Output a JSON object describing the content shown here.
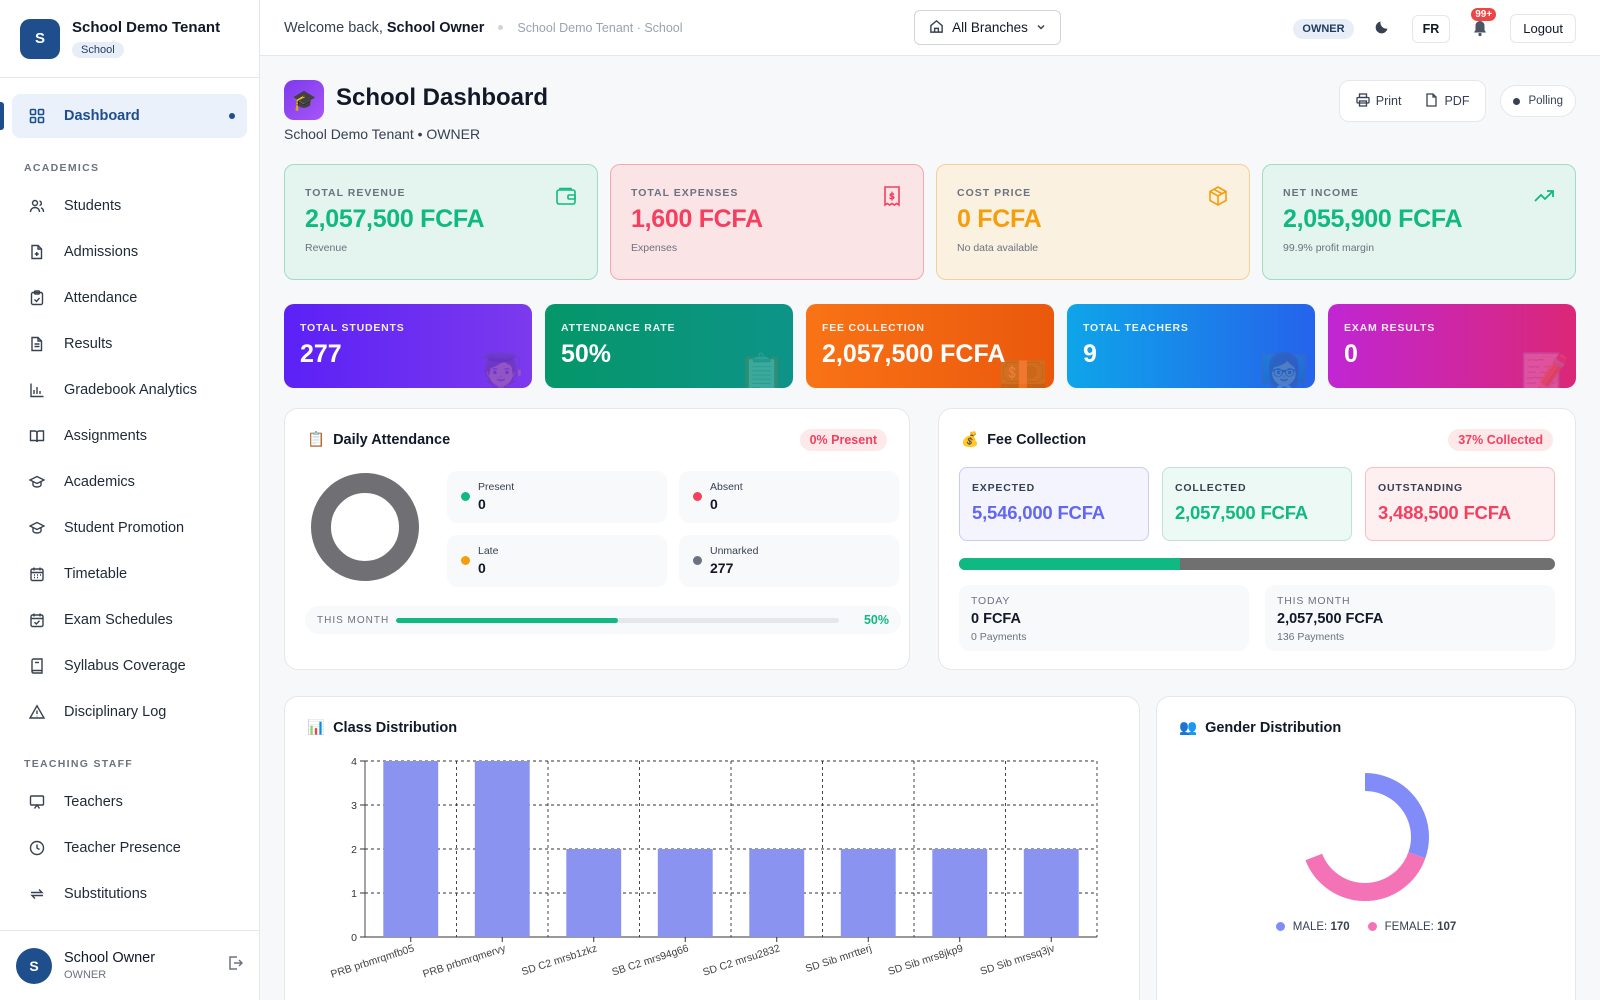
{
  "brand": {
    "logo_letter": "S",
    "name": "School Demo Tenant",
    "badge": "School"
  },
  "nav": {
    "items": [
      {
        "label": "Dashboard",
        "icon": "grid-icon",
        "active": true
      }
    ],
    "sections": [
      {
        "title": "ACADEMICS",
        "items": [
          {
            "label": "Students",
            "icon": "users-icon"
          },
          {
            "label": "Admissions",
            "icon": "file-plus-icon"
          },
          {
            "label": "Attendance",
            "icon": "clipboard-check-icon"
          },
          {
            "label": "Results",
            "icon": "file-text-icon"
          },
          {
            "label": "Gradebook Analytics",
            "icon": "bar-chart-icon"
          },
          {
            "label": "Assignments",
            "icon": "book-open-icon"
          },
          {
            "label": "Academics",
            "icon": "graduation-cap-icon"
          },
          {
            "label": "Student Promotion",
            "icon": "graduation-cap-icon"
          },
          {
            "label": "Timetable",
            "icon": "calendar-icon"
          },
          {
            "label": "Exam Schedules",
            "icon": "calendar-check-icon"
          },
          {
            "label": "Syllabus Coverage",
            "icon": "book-icon"
          },
          {
            "label": "Disciplinary Log",
            "icon": "alert-triangle-icon"
          }
        ]
      },
      {
        "title": "TEACHING STAFF",
        "items": [
          {
            "label": "Teachers",
            "icon": "presentation-icon"
          },
          {
            "label": "Teacher Presence",
            "icon": "clock-icon"
          },
          {
            "label": "Substitutions",
            "icon": "repeat-icon"
          }
        ]
      }
    ]
  },
  "user": {
    "avatar_letter": "S",
    "name": "School Owner",
    "role": "OWNER"
  },
  "topbar": {
    "welcome_prefix": "Welcome back,",
    "welcome_name": "School Owner",
    "breadcrumb": "School Demo Tenant · School",
    "branch_select": "All Branches",
    "role_pill": "OWNER",
    "lang": "FR",
    "notif_count": "99+",
    "logout": "Logout"
  },
  "page": {
    "title": "School Dashboard",
    "subtitle": "School Demo Tenant • OWNER",
    "print_label": "Print",
    "pdf_label": "PDF",
    "polling_label": "Polling"
  },
  "finance": [
    {
      "label": "TOTAL REVENUE",
      "value": "2,057,500 FCFA",
      "sub": "Revenue",
      "bg": "#e3f5ee",
      "border": "#9fdcc3",
      "color": "#10b981",
      "icon": "wallet-icon"
    },
    {
      "label": "TOTAL EXPENSES",
      "value": "1,600 FCFA",
      "sub": "Expenses",
      "bg": "#fbe4e6",
      "border": "#f2a9b2",
      "color": "#f43f5e",
      "icon": "receipt-icon"
    },
    {
      "label": "COST PRICE",
      "value": "0 FCFA",
      "sub": "No data available",
      "bg": "#fbf1e1",
      "border": "#f3d09a",
      "color": "#f59e0b",
      "icon": "box-icon"
    },
    {
      "label": "NET INCOME",
      "value": "2,055,900 FCFA",
      "sub": "99.9% profit margin",
      "bg": "#e3f5ee",
      "border": "#9fdcc3",
      "color": "#10b981",
      "icon": "trending-up-icon"
    }
  ],
  "kpis": [
    {
      "label": "TOTAL STUDENTS",
      "value": "277",
      "gradient": "linear-gradient(90deg,#5b21f6,#7c3aed)",
      "icon": "student-icon"
    },
    {
      "label": "ATTENDANCE RATE",
      "value": "50%",
      "gradient": "linear-gradient(90deg,#059669,#0d9488)",
      "icon": "clipboard-icon"
    },
    {
      "label": "FEE COLLECTION",
      "value": "2,057,500 FCFA",
      "gradient": "linear-gradient(90deg,#f97316,#ea580c)",
      "icon": "money-icon"
    },
    {
      "label": "TOTAL TEACHERS",
      "value": "9",
      "gradient": "linear-gradient(90deg,#0ea5e9,#2563eb)",
      "icon": "teacher-icon"
    },
    {
      "label": "EXAM RESULTS",
      "value": "0",
      "gradient": "linear-gradient(90deg,#c026d3,#db2777)",
      "icon": "memo-icon"
    }
  ],
  "attendance": {
    "title": "Daily Attendance",
    "pill": "0% Present",
    "present_label": "Present",
    "present": "0",
    "absent_label": "Absent",
    "absent": "0",
    "late_label": "Late",
    "late": "0",
    "unmarked_label": "Unmarked",
    "unmarked": "277",
    "month_label": "THIS MONTH",
    "month_value": "50%",
    "month_fraction": 0.5
  },
  "fees": {
    "title": "Fee Collection",
    "pill": "37% Collected",
    "collected_fraction": 0.37,
    "expected_label": "EXPECTED",
    "expected": "5,546,000 FCFA",
    "collected_label": "COLLECTED",
    "collected": "2,057,500 FCFA",
    "outstanding_label": "OUTSTANDING",
    "outstanding": "3,488,500 FCFA",
    "today_label": "TODAY",
    "today": "0 FCFA",
    "today_sub": "0 Payments",
    "month_label": "THIS MONTH",
    "month": "2,057,500 FCFA",
    "month_sub": "136 Payments"
  },
  "class_panel": {
    "title": "Class Distribution"
  },
  "gender_panel": {
    "title": "Gender Distribution",
    "male_label": "MALE:",
    "female_label": "FEMALE:"
  },
  "chart_data": [
    {
      "type": "bar",
      "categories": [
        "PRB prbmrqmfb05",
        "PRB prbmrqmervy",
        "SD C2 mrsb1zkz",
        "SB C2 mrs94g66",
        "SD C2 mrsu2832",
        "SD Sib mrrtterj",
        "SD Sib mrs8jkp9",
        "SD Sib mrssq3jv"
      ],
      "values": [
        4,
        4,
        2,
        2,
        2,
        2,
        2,
        2
      ],
      "ylim": [
        0,
        4
      ],
      "yticks": [
        "0",
        "1",
        "2",
        "3",
        "4"
      ],
      "grid": true,
      "color": "#8b93f0"
    },
    {
      "type": "pie",
      "categories": [
        "MALE",
        "FEMALE"
      ],
      "values": [
        170,
        107
      ],
      "colors": [
        "#818cf8",
        "#f472b6"
      ]
    }
  ]
}
